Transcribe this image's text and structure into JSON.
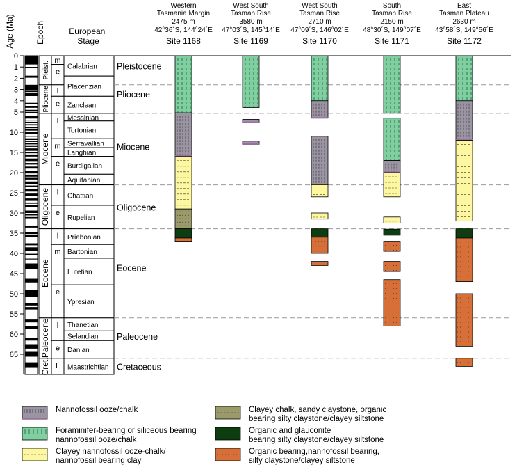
{
  "axis_title": "Age (Ma)",
  "epoch_title": "Epoch",
  "stage_title": [
    "European",
    "Stage"
  ],
  "ages": [
    0,
    1,
    2,
    3,
    4,
    5,
    10,
    15,
    20,
    25,
    30,
    35,
    40,
    45,
    50,
    55,
    60,
    65
  ],
  "age_labels": [
    "0",
    "1",
    "2",
    "3",
    "4",
    "5",
    "10",
    "15",
    "20",
    "25",
    "30",
    "35",
    "40",
    "45",
    "50",
    "55",
    "60",
    "65"
  ],
  "epochs": [
    {
      "name": "Pleist.",
      "top": 0,
      "bottom": 2.58,
      "subs": [
        {
          "label": "m",
          "top": 0,
          "bottom": 0.78
        },
        {
          "label": "e",
          "top": 0.78,
          "bottom": 2.58
        }
      ]
    },
    {
      "name": "Pliocene",
      "top": 2.58,
      "bottom": 5.33,
      "subs": [
        {
          "label": "l",
          "top": 2.58,
          "bottom": 3.6
        },
        {
          "label": "e",
          "top": 3.6,
          "bottom": 5.33
        }
      ]
    },
    {
      "name": "Miocene",
      "top": 5.33,
      "bottom": 23.03,
      "subs": [
        {
          "label": "l",
          "top": 5.33,
          "bottom": 11.6
        },
        {
          "label": "m",
          "top": 11.6,
          "bottom": 15.97
        },
        {
          "label": "e",
          "top": 15.97,
          "bottom": 23.03
        }
      ]
    },
    {
      "name": "Oligocene",
      "top": 23.03,
      "bottom": 33.9,
      "subs": [
        {
          "label": "l",
          "top": 23.03,
          "bottom": 28.1
        },
        {
          "label": "e",
          "top": 28.1,
          "bottom": 33.9
        }
      ]
    },
    {
      "name": "Eocene",
      "top": 33.9,
      "bottom": 56.0,
      "subs": [
        {
          "label": "l",
          "top": 33.9,
          "bottom": 37.8
        },
        {
          "label": "m",
          "top": 37.8,
          "bottom": 47.8
        },
        {
          "label": "e",
          "top": 47.8,
          "bottom": 56.0
        }
      ]
    },
    {
      "name": "Paleocene",
      "top": 56.0,
      "bottom": 66.0,
      "subs": [
        {
          "label": "l",
          "top": 56.0,
          "bottom": 61.6
        },
        {
          "label": "e",
          "top": 61.6,
          "bottom": 66.0
        }
      ]
    },
    {
      "name": "Cret.",
      "top": 66.0,
      "bottom": 70.0,
      "subs": [
        {
          "label": "L",
          "top": 66.0,
          "bottom": 70.0
        }
      ]
    }
  ],
  "stages": [
    {
      "name": "Calabrian",
      "top": 0,
      "bottom": 1.8
    },
    {
      "name": "Placenzian",
      "top": 1.8,
      "bottom": 3.6
    },
    {
      "name": "Zanclean",
      "top": 3.6,
      "bottom": 5.33
    },
    {
      "name": "Messinian",
      "top": 5.33,
      "bottom": 7.2
    },
    {
      "name": "Tortonian",
      "top": 7.2,
      "bottom": 11.6
    },
    {
      "name": "Serravallian",
      "top": 11.6,
      "bottom": 13.8
    },
    {
      "name": "Langhian",
      "top": 13.8,
      "bottom": 15.97
    },
    {
      "name": "Burdigalian",
      "top": 15.97,
      "bottom": 20.4
    },
    {
      "name": "Aquitanian",
      "top": 20.4,
      "bottom": 23.03
    },
    {
      "name": "Chattian",
      "top": 23.03,
      "bottom": 28.1
    },
    {
      "name": "Rupelian",
      "top": 28.1,
      "bottom": 33.9
    },
    {
      "name": "Priabonian",
      "top": 33.9,
      "bottom": 37.8
    },
    {
      "name": "Bartonian",
      "top": 37.8,
      "bottom": 41.2
    },
    {
      "name": "Lutetian",
      "top": 41.2,
      "bottom": 47.8
    },
    {
      "name": "Ypresian",
      "top": 47.8,
      "bottom": 56.0
    },
    {
      "name": "Thanetian",
      "top": 56.0,
      "bottom": 59.2
    },
    {
      "name": "Selandian",
      "top": 59.2,
      "bottom": 61.6
    },
    {
      "name": "Danian",
      "top": 61.6,
      "bottom": 66.0
    },
    {
      "name": "Maastrichtian",
      "top": 66.0,
      "bottom": 70.0
    }
  ],
  "period_labels": [
    {
      "name": "Pleistocene",
      "age": 0.9
    },
    {
      "name": "Pliocene",
      "age": 3.4
    },
    {
      "name": "Miocene",
      "age": 13.5
    },
    {
      "name": "Oligocene",
      "age": 28.5
    },
    {
      "name": "Eocene",
      "age": 43.5
    },
    {
      "name": "Paleocene",
      "age": 60.5
    },
    {
      "name": "Cretaceous",
      "age": 68.0
    }
  ],
  "boundaries": [
    2.58,
    5.33,
    23.03,
    33.9,
    56.0,
    66.0
  ],
  "sites": [
    {
      "region": [
        "Western",
        "Tasmania Margin"
      ],
      "depth": "2475 m",
      "coords": "42°36´S, 144°24´E",
      "name": "Site 1168",
      "units": [
        {
          "top": 0,
          "bottom": 5.2,
          "lith": "foram"
        },
        {
          "top": 5.2,
          "bottom": 16.0,
          "lith": "nanno"
        },
        {
          "top": 16.0,
          "bottom": 29.0,
          "lith": "clayey_nanno"
        },
        {
          "top": 29.0,
          "bottom": 33.9,
          "lith": "clayey_chalk"
        },
        {
          "top": 33.9,
          "bottom": 36.2,
          "lith": "glauconite"
        },
        {
          "top": 36.2,
          "bottom": 37.0,
          "lith": "organic"
        }
      ]
    },
    {
      "region": [
        "West South",
        "Tasman Rise"
      ],
      "depth": "3580 m",
      "coords": "47°03´S, 145°14´E",
      "name": "Site 1169",
      "units": [
        {
          "top": 0,
          "bottom": 4.6,
          "lith": "foram"
        },
        {
          "top": 6.8,
          "bottom": 7.6,
          "lith": "nanno"
        },
        {
          "top": 12.2,
          "bottom": 13.0,
          "lith": "nanno"
        }
      ]
    },
    {
      "region": [
        "West South",
        "Tasman Rise"
      ],
      "depth": "2710 m",
      "coords": "47°09´S, 146°02´E",
      "name": "Site 1170",
      "units": [
        {
          "top": 0,
          "bottom": 4.0,
          "lith": "foram"
        },
        {
          "top": 4.0,
          "bottom": 6.5,
          "lith": "nanno"
        },
        {
          "top": 11.0,
          "bottom": 23.0,
          "lith": "nanno"
        },
        {
          "top": 23.0,
          "bottom": 26.0,
          "lith": "clayey_nanno"
        },
        {
          "top": 30.0,
          "bottom": 31.5,
          "lith": "clayey_nanno"
        },
        {
          "top": 33.9,
          "bottom": 36.0,
          "lith": "glauconite"
        },
        {
          "top": 36.0,
          "bottom": 40.0,
          "lith": "organic"
        },
        {
          "top": 42.0,
          "bottom": 43.0,
          "lith": "organic"
        }
      ]
    },
    {
      "region": [
        "South",
        "Tasman Rise"
      ],
      "depth": "2150 m",
      "coords": "48°30´S, 149°07´E",
      "name": "Site 1171",
      "units": [
        {
          "top": 0,
          "bottom": 5.3,
          "lith": "foram"
        },
        {
          "top": 6.5,
          "bottom": 17.0,
          "lith": "foram"
        },
        {
          "top": 17.0,
          "bottom": 20.0,
          "lith": "nanno"
        },
        {
          "top": 20.0,
          "bottom": 26.0,
          "lith": "clayey_nanno"
        },
        {
          "top": 31.0,
          "bottom": 32.5,
          "lith": "clayey_nanno"
        },
        {
          "top": 34.0,
          "bottom": 35.5,
          "lith": "glauconite"
        },
        {
          "top": 37.0,
          "bottom": 39.5,
          "lith": "organic"
        },
        {
          "top": 42.0,
          "bottom": 44.5,
          "lith": "organic"
        },
        {
          "top": 46.5,
          "bottom": 58.0,
          "lith": "organic"
        }
      ]
    },
    {
      "region": [
        "East",
        "Tasman Plateau"
      ],
      "depth": "2630 m",
      "coords": "43°58´S, 149°56´E",
      "name": "Site 1172",
      "units": [
        {
          "top": 0,
          "bottom": 4.0,
          "lith": "foram"
        },
        {
          "top": 4.0,
          "bottom": 12.0,
          "lith": "nanno"
        },
        {
          "top": 12.0,
          "bottom": 32.0,
          "lith": "clayey_nanno"
        },
        {
          "top": 33.9,
          "bottom": 36.2,
          "lith": "glauconite"
        },
        {
          "top": 36.2,
          "bottom": 47.0,
          "lith": "organic"
        },
        {
          "top": 50.0,
          "bottom": 63.0,
          "lith": "organic"
        },
        {
          "top": 66.0,
          "bottom": 68.0,
          "lith": "organic"
        }
      ]
    }
  ],
  "lithologies": {
    "nanno": {
      "fill": "#9b95a3",
      "stroke": "#a46aa8",
      "label": [
        "Nannofossil ooze/chalk"
      ]
    },
    "foram": {
      "fill": "#7fcfa0",
      "stroke": "#3a8a5a",
      "label": [
        "Foraminifer-bearing or siliceous bearing",
        "nannofossil ooze/chalk"
      ]
    },
    "clayey_nanno": {
      "fill": "#fdf7a1",
      "stroke": "#555",
      "label": [
        "Clayey nannofossil ooze-chalk/",
        "nannofossil bearing clay"
      ]
    },
    "clayey_chalk": {
      "fill": "#9a9a6a",
      "stroke": "#555",
      "label": [
        "Clayey chalk, sandy claystone, organic",
        "bearing silty claystone/clayey siltstone"
      ]
    },
    "glauconite": {
      "fill": "#0f3d12",
      "stroke": "#000",
      "label": [
        "Organic and glauconite",
        "bearing silty claystone/clayey siltstone"
      ]
    },
    "organic": {
      "fill": "#d77038",
      "stroke": "#555",
      "label": [
        "Organic bearing,nannofossil bearing,",
        "silty claystone/clayey siltstone"
      ]
    }
  },
  "legend_order": [
    "nanno",
    "clayey_chalk",
    "foram",
    "glauconite",
    "clayey_nanno",
    "organic"
  ],
  "polarity_intervals": [
    [
      0,
      0.78
    ],
    [
      0.99,
      1.07
    ],
    [
      1.77,
      1.95
    ],
    [
      2.58,
      3.04
    ],
    [
      3.11,
      3.22
    ],
    [
      3.33,
      3.58
    ],
    [
      4.18,
      4.29
    ],
    [
      4.48,
      4.62
    ],
    [
      4.8,
      4.89
    ],
    [
      4.98,
      5.23
    ],
    [
      6.0,
      6.6
    ],
    [
      6.9,
      7.1
    ],
    [
      7.4,
      7.6
    ],
    [
      8.0,
      8.3
    ],
    [
      8.7,
      9.0
    ],
    [
      9.3,
      9.6
    ],
    [
      9.9,
      10.5
    ],
    [
      10.9,
      11.1
    ],
    [
      11.5,
      11.9
    ],
    [
      12.1,
      12.4
    ],
    [
      12.7,
      13.0
    ],
    [
      13.4,
      13.6
    ],
    [
      14.0,
      14.6
    ],
    [
      15.0,
      15.2
    ],
    [
      15.5,
      16.0
    ],
    [
      16.5,
      17.3
    ],
    [
      17.6,
      18.0
    ],
    [
      18.5,
      19.0
    ],
    [
      19.6,
      20.2
    ],
    [
      20.5,
      21.0
    ],
    [
      21.3,
      21.7
    ],
    [
      22.2,
      22.8
    ],
    [
      23.2,
      23.6
    ],
    [
      24.0,
      24.7
    ],
    [
      25.2,
      25.8
    ],
    [
      26.4,
      27.0
    ],
    [
      27.4,
      27.7
    ],
    [
      28.1,
      28.6
    ],
    [
      29.4,
      30.0
    ],
    [
      30.3,
      30.6
    ],
    [
      31.0,
      31.3
    ],
    [
      33.1,
      33.6
    ],
    [
      34.7,
      35.2
    ],
    [
      35.5,
      36.0
    ],
    [
      37.5,
      38.0
    ],
    [
      38.5,
      39.4
    ],
    [
      40.1,
      40.5
    ],
    [
      41.3,
      41.5
    ],
    [
      42.5,
      43.8
    ],
    [
      46.3,
      47.2
    ],
    [
      49.1,
      50.8
    ],
    [
      52.4,
      52.9
    ],
    [
      53.3,
      53.9
    ],
    [
      56.4,
      57.1
    ],
    [
      58.0,
      58.7
    ],
    [
      61.0,
      61.6
    ],
    [
      62.5,
      63.6
    ],
    [
      64.4,
      65.6
    ],
    [
      67.0,
      68.2
    ]
  ]
}
